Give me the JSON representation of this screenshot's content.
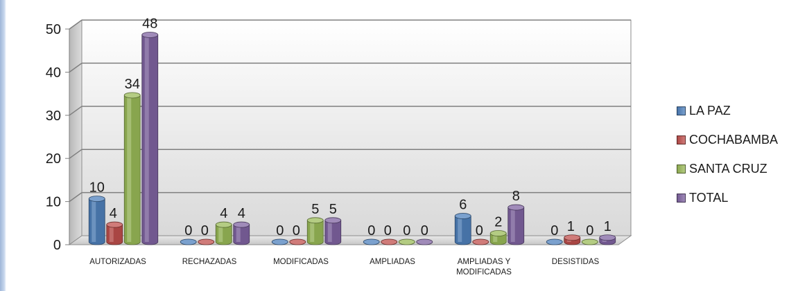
{
  "chart_data": {
    "type": "bar",
    "categories": [
      "AUTORIZADAS",
      "RECHAZADAS",
      "MODIFICADAS",
      "AMPLIADAS",
      "AMPLIADAS Y MODIFICADAS",
      "DESISTIDAS"
    ],
    "category_label_lines": [
      [
        "AUTORIZADAS"
      ],
      [
        "RECHAZADAS"
      ],
      [
        "MODIFICADAS"
      ],
      [
        "AMPLIADAS"
      ],
      [
        "AMPLIADAS Y",
        "MODIFICADAS"
      ],
      [
        "DESISTIDAS"
      ]
    ],
    "series": [
      {
        "name": "LA PAZ",
        "color": "#4f81bd",
        "values": [
          10,
          0,
          0,
          0,
          6,
          0
        ]
      },
      {
        "name": "COCHABAMBA",
        "color": "#c0504d",
        "values": [
          4,
          0,
          0,
          0,
          0,
          1
        ]
      },
      {
        "name": "SANTA CRUZ",
        "color": "#9bbb59",
        "values": [
          34,
          4,
          5,
          0,
          2,
          0
        ]
      },
      {
        "name": "TOTAL",
        "color": "#8064a2",
        "values": [
          48,
          4,
          5,
          0,
          8,
          1
        ]
      }
    ],
    "y_ticks": [
      "0",
      "10",
      "20",
      "30",
      "40",
      "50"
    ],
    "ylim": [
      0,
      50
    ],
    "grid": true,
    "legend_position": "right",
    "style": "3d-cylinder",
    "data_labels": true
  }
}
